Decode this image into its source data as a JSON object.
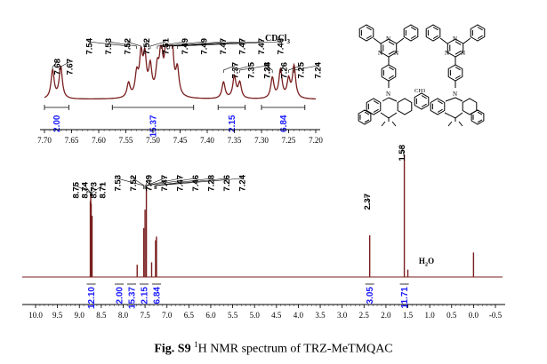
{
  "caption": {
    "label": "Fig. S9",
    "nucleus": "1",
    "text": "H NMR spectrum of TRZ-MeTMQAC"
  },
  "colors": {
    "spectrum": "#7a1e1e",
    "integral": "#1a1aff",
    "axis": "#000000"
  },
  "chart_data": [
    {
      "type": "line",
      "name": "inset-aromatic-region",
      "xlim": [
        7.7,
        7.2
      ],
      "ticks": [
        "7.70",
        "7.65",
        "7.60",
        "7.55",
        "7.50",
        "7.45",
        "7.40",
        "7.35",
        "7.30",
        "7.25",
        "7.20"
      ],
      "peak_labels": [
        "7.68",
        "7.67",
        "7.54",
        "7.53",
        "7.52",
        "7.52",
        "7.51",
        "7.49",
        "7.49",
        "7.47",
        "7.47",
        "7.47",
        "7.46",
        "7.37",
        "7.35",
        "7.34",
        "7.28",
        "7.26",
        "7.25",
        "7.24"
      ],
      "peaks": [
        {
          "ppm": 7.685,
          "height": 0.55
        },
        {
          "ppm": 7.67,
          "height": 0.62
        },
        {
          "ppm": 7.545,
          "height": 0.28
        },
        {
          "ppm": 7.53,
          "height": 0.42
        },
        {
          "ppm": 7.522,
          "height": 0.75
        },
        {
          "ppm": 7.515,
          "height": 0.72
        },
        {
          "ppm": 7.505,
          "height": 0.55
        },
        {
          "ppm": 7.492,
          "height": 0.48
        },
        {
          "ppm": 7.485,
          "height": 0.85
        },
        {
          "ppm": 7.475,
          "height": 0.95
        },
        {
          "ppm": 7.47,
          "height": 1.0
        },
        {
          "ppm": 7.465,
          "height": 0.78
        },
        {
          "ppm": 7.455,
          "height": 0.5
        },
        {
          "ppm": 7.37,
          "height": 0.32
        },
        {
          "ppm": 7.35,
          "height": 0.42
        },
        {
          "ppm": 7.34,
          "height": 0.3
        },
        {
          "ppm": 7.28,
          "height": 0.4
        },
        {
          "ppm": 7.265,
          "height": 0.55
        },
        {
          "ppm": 7.25,
          "height": 0.35
        },
        {
          "ppm": 7.24,
          "height": 0.62
        }
      ],
      "solvent_label": "CDCl3",
      "integrals": [
        {
          "from": 7.7,
          "to": 7.655,
          "value": "2.00"
        },
        {
          "from": 7.575,
          "to": 7.425,
          "value": "15.37"
        },
        {
          "from": 7.38,
          "to": 7.33,
          "value": "2.15"
        },
        {
          "from": 7.3,
          "to": 7.22,
          "value": "6.84"
        }
      ]
    },
    {
      "type": "line",
      "name": "full-spectrum",
      "xlim": [
        10.0,
        -0.5
      ],
      "ticks": [
        "10.0",
        "9.5",
        "9.0",
        "8.5",
        "8.0",
        "7.5",
        "7.0",
        "6.5",
        "6.0",
        "5.5",
        "5.0",
        "4.5",
        "4.0",
        "3.5",
        "3.0",
        "2.5",
        "2.0",
        "1.5",
        "1.0",
        "0.5",
        "0.0",
        "-0.5"
      ],
      "peak_label_groups": [
        {
          "labels": [
            "8.75",
            "8.74",
            "8.73",
            "8.71"
          ]
        },
        {
          "labels": [
            "7.53",
            "7.52",
            "7.49",
            "7.47",
            "7.47",
            "7.46",
            "7.28",
            "7.26",
            "7.24"
          ]
        },
        {
          "labels": [
            "2.37"
          ]
        },
        {
          "labels": [
            "1.58"
          ]
        }
      ],
      "peaks": [
        {
          "ppm": 8.75,
          "height": 0.62
        },
        {
          "ppm": 8.74,
          "height": 0.68
        },
        {
          "ppm": 8.73,
          "height": 0.6
        },
        {
          "ppm": 8.71,
          "height": 0.5
        },
        {
          "ppm": 7.68,
          "height": 0.1
        },
        {
          "ppm": 7.53,
          "height": 0.4
        },
        {
          "ppm": 7.5,
          "height": 0.55
        },
        {
          "ppm": 7.47,
          "height": 0.72
        },
        {
          "ppm": 7.35,
          "height": 0.12
        },
        {
          "ppm": 7.26,
          "height": 0.3
        },
        {
          "ppm": 7.24,
          "height": 0.33
        },
        {
          "ppm": 2.37,
          "height": 0.34
        },
        {
          "ppm": 1.58,
          "height": 1.0
        },
        {
          "ppm": 1.5,
          "height": 0.06
        },
        {
          "ppm": 0.0,
          "height": 0.2
        }
      ],
      "annotation": "H2O",
      "integrals": [
        {
          "ppm": 8.73,
          "value": "12.10"
        },
        {
          "ppm": 7.68,
          "value": "2.00"
        },
        {
          "ppm": 7.49,
          "value": "15.37"
        },
        {
          "ppm": 7.35,
          "value": "2.15"
        },
        {
          "ppm": 7.24,
          "value": "6.84"
        },
        {
          "ppm": 2.37,
          "value": "3.05"
        },
        {
          "ppm": 1.58,
          "value": "11.71"
        }
      ]
    }
  ],
  "structure": {
    "label": "CH3",
    "atoms": [
      "N",
      "N",
      "N",
      "N",
      "N",
      "N",
      "N",
      "N"
    ]
  }
}
